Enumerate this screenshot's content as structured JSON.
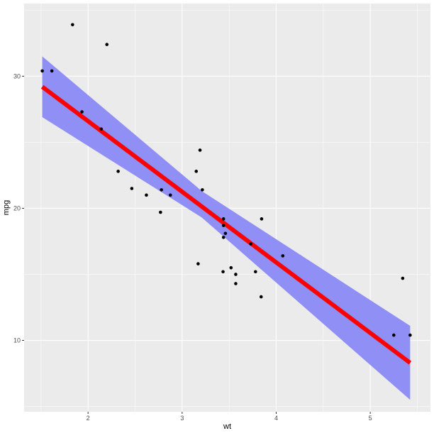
{
  "chart_data": {
    "type": "scatter",
    "title": "",
    "xlabel": "wt",
    "ylabel": "mpg",
    "xlim": [
      1.32,
      5.64
    ],
    "ylim": [
      4.6,
      35.5
    ],
    "x_ticks": [
      2,
      3,
      4,
      5
    ],
    "x_tick_labels": [
      "2",
      "3",
      "4",
      "5"
    ],
    "y_ticks": [
      10,
      20,
      30
    ],
    "y_tick_labels": [
      "10",
      "20",
      "30"
    ],
    "grid": true,
    "legend": "none",
    "series": [
      {
        "type": "scatter",
        "x": [
          2.62,
          2.875,
          2.32,
          3.215,
          3.44,
          3.46,
          3.57,
          3.19,
          3.15,
          3.44,
          3.44,
          4.07,
          3.73,
          3.78,
          5.25,
          5.424,
          5.345,
          2.2,
          1.615,
          1.835,
          2.465,
          3.52,
          3.435,
          3.84,
          3.845,
          1.935,
          2.14,
          1.513,
          3.17,
          2.77,
          3.57,
          2.78
        ],
        "y": [
          21.0,
          21.0,
          22.8,
          21.4,
          18.7,
          18.1,
          14.3,
          24.4,
          22.8,
          19.2,
          17.8,
          16.4,
          17.3,
          15.2,
          10.4,
          10.4,
          14.7,
          32.4,
          30.4,
          33.9,
          21.5,
          15.5,
          15.2,
          13.3,
          19.2,
          27.3,
          26.0,
          30.4,
          15.8,
          19.7,
          15.0,
          21.4
        ]
      },
      {
        "type": "line",
        "x": [
          1.513,
          5.424
        ],
        "y": [
          29.2,
          8.3
        ]
      }
    ],
    "confidence_band": {
      "x": [
        1.513,
        3.21,
        5.424
      ],
      "lower": [
        26.9,
        19.3,
        5.5
      ],
      "upper": [
        31.5,
        21.3,
        11.1
      ]
    },
    "colors": {
      "panel": "#ebebeb",
      "grid_major": "#ffffff",
      "points": "#000000",
      "line": "#ff0000",
      "band": "#8f8ff5"
    }
  }
}
